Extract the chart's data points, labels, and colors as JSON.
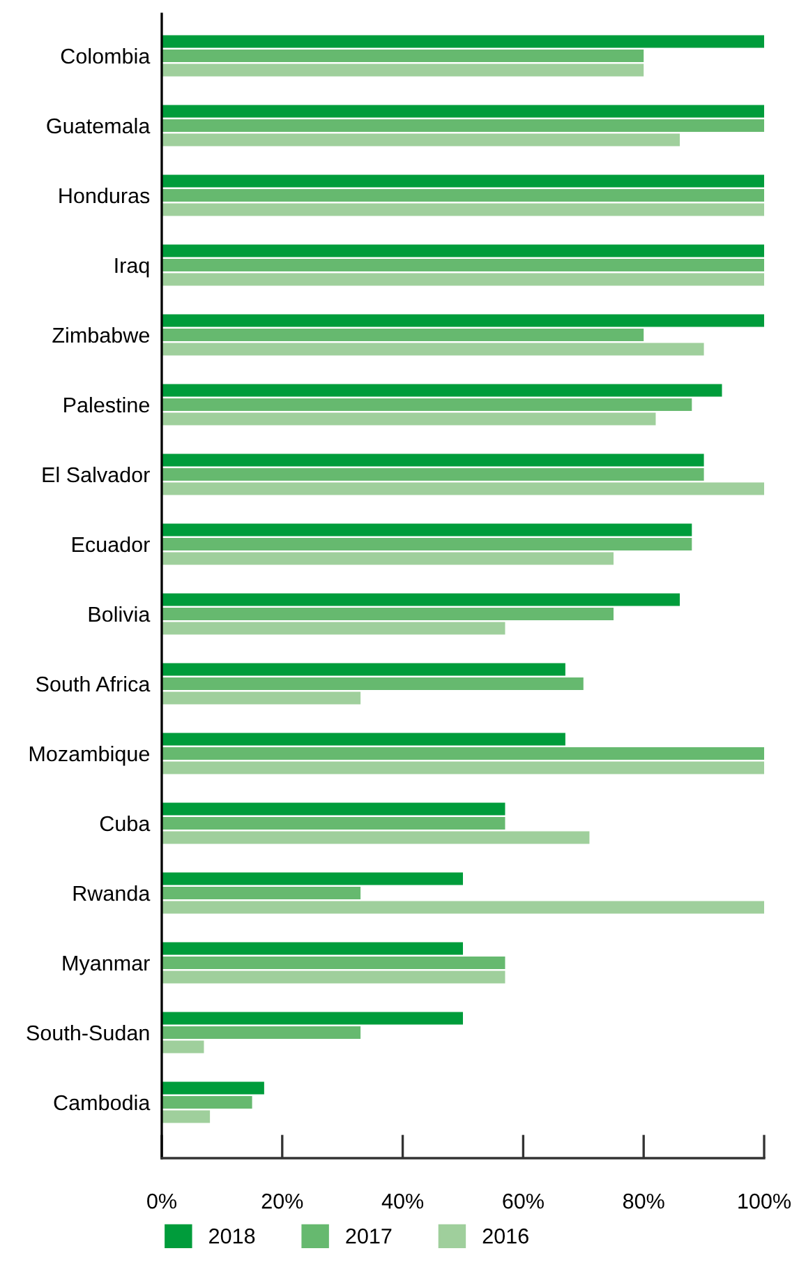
{
  "chart_data": {
    "type": "bar",
    "orientation": "horizontal",
    "categories": [
      "Colombia",
      "Guatemala",
      "Honduras",
      "Iraq",
      "Zimbabwe",
      "Palestine",
      "El Salvador",
      "Ecuador",
      "Bolivia",
      "South Africa",
      "Mozambique",
      "Cuba",
      "Rwanda",
      "Myanmar",
      "South-Sudan",
      "Cambodia"
    ],
    "series": [
      {
        "name": "2018",
        "color": "#009c3b",
        "values": [
          100,
          100,
          100,
          100,
          100,
          93,
          90,
          88,
          86,
          67,
          67,
          57,
          50,
          50,
          50,
          17
        ]
      },
      {
        "name": "2017",
        "color": "#66b96f",
        "values": [
          80,
          100,
          100,
          100,
          80,
          88,
          90,
          88,
          75,
          70,
          100,
          57,
          33,
          57,
          33,
          15
        ]
      },
      {
        "name": "2016",
        "color": "#9fcf9c",
        "values": [
          80,
          86,
          100,
          100,
          90,
          82,
          100,
          75,
          57,
          33,
          100,
          71,
          100,
          57,
          7,
          8
        ]
      }
    ],
    "xlim": [
      0,
      100
    ],
    "xticks": [
      {
        "value": 0,
        "label": "0%"
      },
      {
        "value": 20,
        "label": "20%"
      },
      {
        "value": 40,
        "label": "40%"
      },
      {
        "value": 60,
        "label": "60%"
      },
      {
        "value": 80,
        "label": "80%"
      },
      {
        "value": 100,
        "label": "100%"
      }
    ],
    "grid": false,
    "legend": "bottom"
  }
}
